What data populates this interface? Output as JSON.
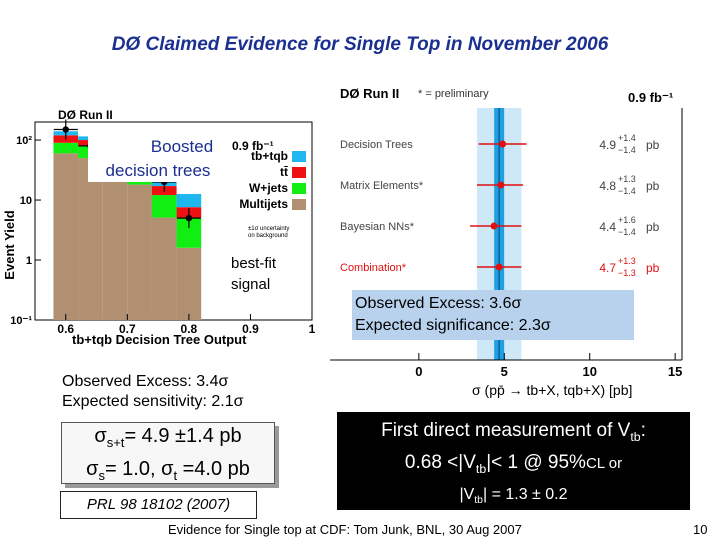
{
  "slide": {
    "title": "DØ Claimed Evidence for Single Top in November 2006",
    "footer": "Evidence for Single top at CDF: Tom Junk, BNL, 30 Aug 2007",
    "page": "10"
  },
  "left_plot": {
    "header": "DØ Run II",
    "ylabel": "Event Yield",
    "xlabel": "tb+tqb Decision Tree Output",
    "overlay1": "Boosted",
    "overlay2": "decision trees",
    "lumi": "0.9 fb⁻¹",
    "best_fit1": "best-fit",
    "best_fit2": "signal",
    "legend": [
      {
        "label": "tb+tqb",
        "color": "#1fb7f0"
      },
      {
        "label": "tt̄",
        "color": "#ee1111"
      },
      {
        "label": "W+jets",
        "color": "#11ee11"
      },
      {
        "label": "Multijets",
        "color": "#b09070"
      }
    ],
    "uncert1": "±1σ uncertainty",
    "uncert2": "on background",
    "xticks": [
      "0.6",
      "0.7",
      "0.8",
      "0.9",
      "1"
    ],
    "yticks": [
      "10⁻¹",
      "1",
      "10",
      "10²"
    ]
  },
  "right_plot": {
    "header": "DØ Run II",
    "prelim": "* = preliminary",
    "lumi": "0.9 fb⁻¹",
    "xlabel": "σ (pp̄ → tb+X, tqb+X) [pb]",
    "xticks": [
      "0",
      "5",
      "10",
      "15"
    ],
    "measurements": [
      {
        "name": "Decision Trees",
        "value": "4.9",
        "up": "+1.4",
        "down": "−1.4",
        "unit": "pb",
        "highlight": false
      },
      {
        "name": "Matrix Elements*",
        "value": "4.8",
        "up": "+1.3",
        "down": "−1.4",
        "unit": "pb",
        "highlight": false
      },
      {
        "name": "Bayesian NNs*",
        "value": "4.4",
        "up": "+1.6",
        "down": "−1.4",
        "unit": "pb",
        "highlight": false
      },
      {
        "name": "Combination*",
        "value": "4.7",
        "up": "+1.3",
        "down": "−1.3",
        "unit": "pb",
        "highlight": true
      }
    ]
  },
  "notes": {
    "obs_left1": "Observed Excess: 3.4σ",
    "obs_left2": "Expected sensitivity: 2.1σ",
    "sigma_st_pre": "σ",
    "sigma_st_sub": "s+t",
    "sigma_st_val": "= 4.9 ±1.4 pb",
    "sigma_s_pre": "σ",
    "sigma_s_sub": "s",
    "sigma_s_val": "= 1.0, ",
    "sigma_t_pre": "σ",
    "sigma_t_sub": "t",
    "sigma_t_val": " =4.0 pb",
    "prl": "PRL 98 18102 (2007)",
    "obs_right1": "Observed Excess: 3.6σ",
    "obs_right2": "Expected significance: 2.3σ",
    "vtb_line1_pre": "First direct measurement of V",
    "vtb_line1_sub": "tb",
    "vtb_line1_post": ":",
    "vtb_line2_pre": "0.68 <|V",
    "vtb_line2_sub": "tb",
    "vtb_line2_post": "|< 1 @ 95%",
    "vtb_line2_cl": "CL or",
    "vtb_line3_pre": "|V",
    "vtb_line3_sub": "tb",
    "vtb_line3_post": "| = 1.3 ± 0.2"
  },
  "chart_data": {
    "type": "bar",
    "title": "",
    "xlabel": "tb+tqb Decision Tree Output",
    "ylabel": "Event Yield",
    "yscale": "log",
    "ylim": [
      0.1,
      200
    ],
    "xlim": [
      0.6,
      1.0
    ],
    "bin_edges": [
      0.58,
      0.62,
      0.66,
      0.7,
      0.74,
      0.78,
      0.82
    ],
    "series": [
      {
        "name": "Multijets",
        "values": [
          60,
          50,
          30,
          18,
          5,
          1.5
        ]
      },
      {
        "name": "W+jets",
        "values": [
          30,
          28,
          20,
          18,
          7,
          3.5
        ]
      },
      {
        "name": "tt̄",
        "values": [
          30,
          22,
          18,
          10,
          5,
          2.5
        ]
      },
      {
        "name": "tb+tqb",
        "values": [
          20,
          15,
          12,
          10,
          5,
          5
        ]
      }
    ],
    "data_points": {
      "x": [
        0.6,
        0.64,
        0.68,
        0.72,
        0.76,
        0.8
      ],
      "y": [
        150,
        80,
        70,
        40,
        20,
        5
      ]
    },
    "grid": false,
    "legend_position": "top-right"
  }
}
